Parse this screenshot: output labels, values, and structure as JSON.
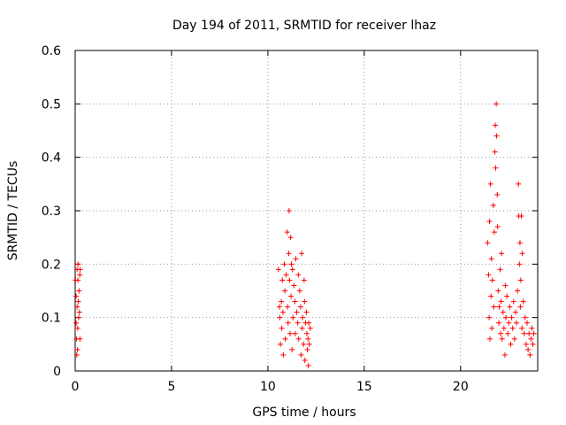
{
  "chart_data": {
    "type": "scatter",
    "title": "Day 194 of 2011, SRMTID for receiver lhaz",
    "xlabel": "GPS time / hours",
    "ylabel": "SRMTID / TECUs",
    "xlim": [
      0,
      24
    ],
    "ylim": [
      0,
      0.6
    ],
    "x_ticks": [
      0,
      5,
      10,
      15,
      20
    ],
    "y_ticks": [
      0,
      0.1,
      0.2,
      0.3,
      0.4,
      0.5,
      0.6
    ],
    "x_tick_labels": [
      "0",
      "5",
      "10",
      "15",
      "20"
    ],
    "y_tick_labels": [
      "0",
      "0.1",
      "0.2",
      "0.3",
      "0.4",
      "0.5",
      "0.6"
    ],
    "grid": true,
    "legend": "none",
    "marker_color": "#ff0000",
    "marker": "plus",
    "series": [
      {
        "points": [
          [
            0.02,
            0.17
          ],
          [
            0.05,
            0.14
          ],
          [
            0.05,
            0.09
          ],
          [
            0.07,
            0.06
          ],
          [
            0.08,
            0.03
          ],
          [
            0.1,
            0.19
          ],
          [
            0.1,
            0.12
          ],
          [
            0.12,
            0.04
          ],
          [
            0.13,
            0.08
          ],
          [
            0.14,
            0.17
          ],
          [
            0.15,
            0.2
          ],
          [
            0.16,
            0.13
          ],
          [
            0.18,
            0.1
          ],
          [
            0.2,
            0.15
          ],
          [
            0.22,
            0.11
          ],
          [
            0.24,
            0.18
          ],
          [
            0.25,
            0.06
          ],
          [
            0.26,
            0.19
          ],
          [
            10.55,
            0.19
          ],
          [
            10.6,
            0.12
          ],
          [
            10.62,
            0.1
          ],
          [
            10.65,
            0.05
          ],
          [
            10.7,
            0.13
          ],
          [
            10.72,
            0.08
          ],
          [
            10.75,
            0.17
          ],
          [
            10.78,
            0.11
          ],
          [
            10.8,
            0.03
          ],
          [
            10.85,
            0.2
          ],
          [
            10.88,
            0.15
          ],
          [
            10.9,
            0.06
          ],
          [
            10.95,
            0.18
          ],
          [
            11.0,
            0.26
          ],
          [
            11.02,
            0.12
          ],
          [
            11.05,
            0.09
          ],
          [
            11.08,
            0.22
          ],
          [
            11.1,
            0.3
          ],
          [
            11.12,
            0.17
          ],
          [
            11.15,
            0.07
          ],
          [
            11.18,
            0.25
          ],
          [
            11.2,
            0.14
          ],
          [
            11.22,
            0.2
          ],
          [
            11.25,
            0.04
          ],
          [
            11.28,
            0.19
          ],
          [
            11.3,
            0.1
          ],
          [
            11.35,
            0.16
          ],
          [
            11.4,
            0.13
          ],
          [
            11.42,
            0.07
          ],
          [
            11.45,
            0.21
          ],
          [
            11.5,
            0.11
          ],
          [
            11.55,
            0.09
          ],
          [
            11.58,
            0.18
          ],
          [
            11.6,
            0.06
          ],
          [
            11.65,
            0.15
          ],
          [
            11.7,
            0.12
          ],
          [
            11.72,
            0.03
          ],
          [
            11.75,
            0.22
          ],
          [
            11.78,
            0.08
          ],
          [
            11.8,
            0.1
          ],
          [
            11.85,
            0.05
          ],
          [
            11.88,
            0.17
          ],
          [
            11.9,
            0.13
          ],
          [
            11.92,
            0.02
          ],
          [
            11.95,
            0.09
          ],
          [
            12.0,
            0.11
          ],
          [
            12.02,
            0.07
          ],
          [
            12.05,
            0.04
          ],
          [
            12.08,
            0.06
          ],
          [
            12.1,
            0.01
          ],
          [
            12.12,
            0.09
          ],
          [
            12.15,
            0.05
          ],
          [
            12.2,
            0.08
          ],
          [
            21.4,
            0.24
          ],
          [
            21.45,
            0.18
          ],
          [
            21.48,
            0.1
          ],
          [
            21.5,
            0.28
          ],
          [
            21.52,
            0.06
          ],
          [
            21.55,
            0.35
          ],
          [
            21.58,
            0.14
          ],
          [
            21.6,
            0.21
          ],
          [
            21.62,
            0.08
          ],
          [
            21.65,
            0.17
          ],
          [
            21.7,
            0.31
          ],
          [
            21.72,
            0.12
          ],
          [
            21.75,
            0.26
          ],
          [
            21.78,
            0.41
          ],
          [
            21.8,
            0.46
          ],
          [
            21.82,
            0.38
          ],
          [
            21.85,
            0.5
          ],
          [
            21.87,
            0.44
          ],
          [
            21.9,
            0.33
          ],
          [
            21.92,
            0.27
          ],
          [
            21.95,
            0.15
          ],
          [
            21.98,
            0.09
          ],
          [
            22.0,
            0.12
          ],
          [
            22.05,
            0.19
          ],
          [
            22.08,
            0.07
          ],
          [
            22.1,
            0.13
          ],
          [
            22.12,
            0.22
          ],
          [
            22.15,
            0.06
          ],
          [
            22.2,
            0.11
          ],
          [
            22.25,
            0.08
          ],
          [
            22.3,
            0.03
          ],
          [
            22.32,
            0.16
          ],
          [
            22.35,
            0.1
          ],
          [
            22.4,
            0.14
          ],
          [
            22.45,
            0.07
          ],
          [
            22.5,
            0.09
          ],
          [
            22.55,
            0.12
          ],
          [
            22.6,
            0.05
          ],
          [
            22.65,
            0.1
          ],
          [
            22.7,
            0.08
          ],
          [
            22.75,
            0.13
          ],
          [
            22.8,
            0.06
          ],
          [
            22.85,
            0.11
          ],
          [
            22.9,
            0.09
          ],
          [
            22.95,
            0.15
          ],
          [
            23.0,
            0.35
          ],
          [
            23.02,
            0.29
          ],
          [
            23.05,
            0.2
          ],
          [
            23.08,
            0.24
          ],
          [
            23.1,
            0.12
          ],
          [
            23.12,
            0.17
          ],
          [
            23.15,
            0.29
          ],
          [
            23.18,
            0.08
          ],
          [
            23.2,
            0.22
          ],
          [
            23.25,
            0.13
          ],
          [
            23.3,
            0.07
          ],
          [
            23.35,
            0.1
          ],
          [
            23.4,
            0.05
          ],
          [
            23.45,
            0.09
          ],
          [
            23.5,
            0.04
          ],
          [
            23.55,
            0.07
          ],
          [
            23.6,
            0.03
          ],
          [
            23.65,
            0.06
          ],
          [
            23.7,
            0.08
          ],
          [
            23.75,
            0.05
          ],
          [
            23.8,
            0.07
          ]
        ]
      }
    ]
  }
}
